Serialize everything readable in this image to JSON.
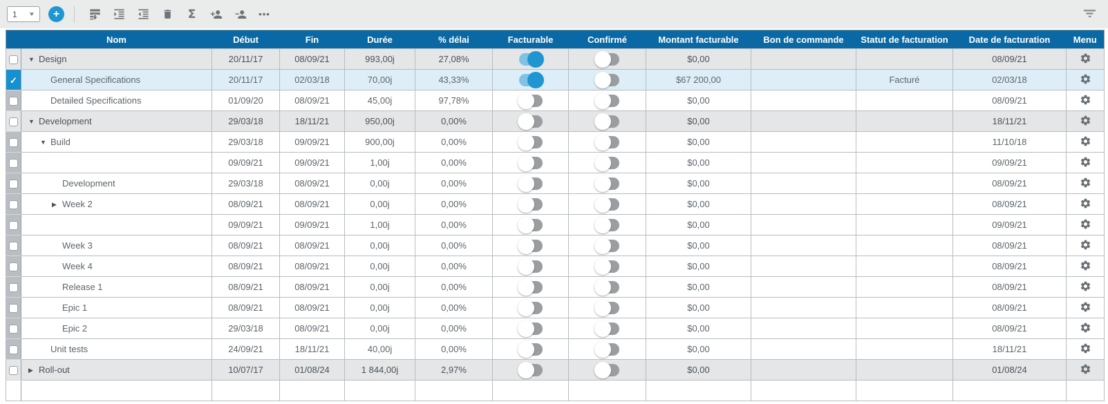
{
  "glyphs": {
    "plus": "+",
    "caret": "▼",
    "sigma": "Σ",
    "more": "•••",
    "check": "✓",
    "arrow_down": "▼",
    "arrow_right": "▶"
  },
  "colors": {
    "header_bg": "#0a69a4",
    "accent_blue": "#1e96d2",
    "toggle_on_track": "#7fc2e5",
    "toggle_on_knob": "#1f96d1",
    "toggle_off_track": "#9b9ea1",
    "row_group_bg": "#e5e6e7",
    "row_selected_bg": "#ddeef8",
    "checkbox_strip_bg": "#b9bec3",
    "checkbox_checked_bg": "#1790d0"
  },
  "toolbar": {
    "row_selector_value": "1",
    "icon_names": [
      "insert-row-icon",
      "indent-icon",
      "outdent-icon",
      "delete-icon",
      "sum-icon",
      "add-user-icon",
      "remove-user-icon",
      "more-icon",
      "filter-icon"
    ]
  },
  "table": {
    "columns": [
      {
        "id": "checkbox",
        "label": ""
      },
      {
        "id": "nom",
        "label": "Nom"
      },
      {
        "id": "debut",
        "label": "Début"
      },
      {
        "id": "fin",
        "label": "Fin"
      },
      {
        "id": "duree",
        "label": "Durée"
      },
      {
        "id": "delai",
        "label": "% délai"
      },
      {
        "id": "facturable",
        "label": "Facturable"
      },
      {
        "id": "confirme",
        "label": "Confirmé"
      },
      {
        "id": "montant",
        "label": "Montant facturable"
      },
      {
        "id": "bon",
        "label": "Bon de commande"
      },
      {
        "id": "statut",
        "label": "Statut de facturation"
      },
      {
        "id": "date_facturation",
        "label": "Date de facturation"
      },
      {
        "id": "menu",
        "label": "Menu"
      }
    ],
    "rows": [
      {
        "name": "Design",
        "level": 0,
        "arrow": "down",
        "variant": "group",
        "checkbox": true,
        "checked": false,
        "debut": "20/11/17",
        "fin": "08/09/21",
        "duree": "993,00j",
        "delai": "27,08%",
        "facturable": "on",
        "confirme": "off",
        "montant": "$0,00",
        "bon": "",
        "statut": "",
        "date_facturation": "08/09/21",
        "menu": true
      },
      {
        "name": "General Specifications",
        "level": 1,
        "arrow": "",
        "variant": "selected",
        "checkbox": true,
        "checked": true,
        "debut": "20/11/17",
        "fin": "02/03/18",
        "duree": "70,00j",
        "delai": "43,33%",
        "facturable": "on",
        "confirme": "off",
        "montant": "$67 200,00",
        "bon": "",
        "statut": "Facturé",
        "date_facturation": "02/03/18",
        "menu": true
      },
      {
        "name": "Detailed Specifications",
        "level": 1,
        "arrow": "",
        "variant": "normal",
        "checkbox": true,
        "checked": false,
        "debut": "01/09/20",
        "fin": "08/09/21",
        "duree": "45,00j",
        "delai": "97,78%",
        "facturable": "off",
        "confirme": "off",
        "montant": "$0,00",
        "bon": "",
        "statut": "",
        "date_facturation": "08/09/21",
        "menu": true
      },
      {
        "name": "Development",
        "level": 0,
        "arrow": "down",
        "variant": "group",
        "checkbox": true,
        "checked": false,
        "debut": "29/03/18",
        "fin": "18/11/21",
        "duree": "950,00j",
        "delai": "0,00%",
        "facturable": "off",
        "confirme": "off",
        "montant": "$0,00",
        "bon": "",
        "statut": "",
        "date_facturation": "18/11/21",
        "menu": true
      },
      {
        "name": "Build",
        "level": 1,
        "arrow": "down",
        "variant": "normal",
        "checkbox": true,
        "checked": false,
        "debut": "29/03/18",
        "fin": "09/09/21",
        "duree": "900,00j",
        "delai": "0,00%",
        "facturable": "off",
        "confirme": "off",
        "montant": "$0,00",
        "bon": "",
        "statut": "",
        "date_facturation": "11/10/18",
        "menu": true
      },
      {
        "name": "",
        "level": 1,
        "arrow": "",
        "variant": "normal",
        "checkbox": true,
        "checked": false,
        "debut": "09/09/21",
        "fin": "09/09/21",
        "duree": "1,00j",
        "delai": "0,00%",
        "facturable": "off",
        "confirme": "off",
        "montant": "$0,00",
        "bon": "",
        "statut": "",
        "date_facturation": "09/09/21",
        "menu": true
      },
      {
        "name": "Development",
        "level": 2,
        "arrow": "",
        "variant": "normal",
        "checkbox": true,
        "checked": false,
        "debut": "29/03/18",
        "fin": "08/09/21",
        "duree": "0,00j",
        "delai": "0,00%",
        "facturable": "off",
        "confirme": "off",
        "montant": "$0,00",
        "bon": "",
        "statut": "",
        "date_facturation": "08/09/21",
        "menu": true
      },
      {
        "name": "Week 2",
        "level": 2,
        "arrow": "right",
        "variant": "normal",
        "checkbox": true,
        "checked": false,
        "debut": "08/09/21",
        "fin": "08/09/21",
        "duree": "0,00j",
        "delai": "0,00%",
        "facturable": "off",
        "confirme": "off",
        "montant": "$0,00",
        "bon": "",
        "statut": "",
        "date_facturation": "08/09/21",
        "menu": true
      },
      {
        "name": "",
        "level": 1,
        "arrow": "",
        "variant": "normal",
        "checkbox": true,
        "checked": false,
        "debut": "09/09/21",
        "fin": "09/09/21",
        "duree": "1,00j",
        "delai": "0,00%",
        "facturable": "off",
        "confirme": "off",
        "montant": "$0,00",
        "bon": "",
        "statut": "",
        "date_facturation": "09/09/21",
        "menu": true
      },
      {
        "name": "Week 3",
        "level": 2,
        "arrow": "",
        "variant": "normal",
        "checkbox": true,
        "checked": false,
        "debut": "08/09/21",
        "fin": "08/09/21",
        "duree": "0,00j",
        "delai": "0,00%",
        "facturable": "off",
        "confirme": "off",
        "montant": "$0,00",
        "bon": "",
        "statut": "",
        "date_facturation": "08/09/21",
        "menu": true
      },
      {
        "name": "Week 4",
        "level": 2,
        "arrow": "",
        "variant": "normal",
        "checkbox": true,
        "checked": false,
        "debut": "08/09/21",
        "fin": "08/09/21",
        "duree": "0,00j",
        "delai": "0,00%",
        "facturable": "off",
        "confirme": "off",
        "montant": "$0,00",
        "bon": "",
        "statut": "",
        "date_facturation": "08/09/21",
        "menu": true
      },
      {
        "name": "Release 1",
        "level": 2,
        "arrow": "",
        "variant": "normal",
        "checkbox": true,
        "checked": false,
        "debut": "08/09/21",
        "fin": "08/09/21",
        "duree": "0,00j",
        "delai": "0,00%",
        "facturable": "off",
        "confirme": "off",
        "montant": "$0,00",
        "bon": "",
        "statut": "",
        "date_facturation": "08/09/21",
        "menu": true
      },
      {
        "name": "Epic 1",
        "level": 2,
        "arrow": "",
        "variant": "normal",
        "checkbox": true,
        "checked": false,
        "debut": "08/09/21",
        "fin": "08/09/21",
        "duree": "0,00j",
        "delai": "0,00%",
        "facturable": "off",
        "confirme": "off",
        "montant": "$0,00",
        "bon": "",
        "statut": "",
        "date_facturation": "08/09/21",
        "menu": true
      },
      {
        "name": "Epic 2",
        "level": 2,
        "arrow": "",
        "variant": "normal",
        "checkbox": true,
        "checked": false,
        "debut": "29/03/18",
        "fin": "08/09/21",
        "duree": "0,00j",
        "delai": "0,00%",
        "facturable": "off",
        "confirme": "off",
        "montant": "$0,00",
        "bon": "",
        "statut": "",
        "date_facturation": "08/09/21",
        "menu": true
      },
      {
        "name": "Unit tests",
        "level": 1,
        "arrow": "",
        "variant": "normal",
        "checkbox": true,
        "checked": false,
        "debut": "24/09/21",
        "fin": "18/11/21",
        "duree": "40,00j",
        "delai": "0,00%",
        "facturable": "off",
        "confirme": "off",
        "montant": "$0,00",
        "bon": "",
        "statut": "",
        "date_facturation": "18/11/21",
        "menu": true
      },
      {
        "name": "Roll-out",
        "level": 0,
        "arrow": "right",
        "variant": "group",
        "checkbox": true,
        "checked": false,
        "debut": "10/07/17",
        "fin": "01/08/24",
        "duree": "1 844,00j",
        "delai": "2,97%",
        "facturable": "off",
        "confirme": "off",
        "montant": "$0,00",
        "bon": "",
        "statut": "",
        "date_facturation": "01/08/24",
        "menu": true
      },
      {
        "name": "",
        "level": 0,
        "arrow": "",
        "variant": "empty",
        "checkbox": false,
        "checked": false,
        "debut": "",
        "fin": "",
        "duree": "",
        "delai": "",
        "facturable": "",
        "confirme": "",
        "montant": "",
        "bon": "",
        "statut": "",
        "date_facturation": "",
        "menu": false
      }
    ]
  }
}
